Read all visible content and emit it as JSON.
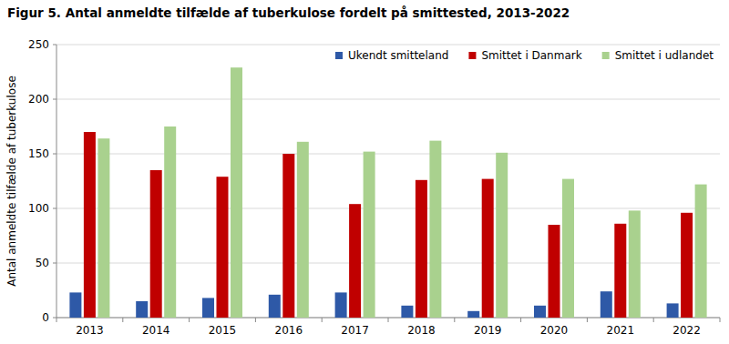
{
  "chart_data": {
    "type": "bar",
    "title": "Figur 5. Antal anmeldte tilfælde af tuberkulose fordelt på smittested,  2013-2022",
    "y_label": "Antal anmeldte tilfælde af tuberkulose",
    "categories": [
      "2013",
      "2014",
      "2015",
      "2016",
      "2017",
      "2018",
      "2019",
      "2020",
      "2021",
      "2022"
    ],
    "series": [
      {
        "name": "Ukendt smitteland",
        "color": "#2e59a7",
        "values": [
          23,
          15,
          18,
          21,
          23,
          11,
          6,
          11,
          24,
          13
        ]
      },
      {
        "name": "Smittet i Danmark",
        "color": "#c00000",
        "values": [
          170,
          135,
          129,
          150,
          104,
          126,
          127,
          85,
          86,
          96
        ]
      },
      {
        "name": "Smittet i udlandet",
        "color": "#a9d18e",
        "values": [
          164,
          175,
          229,
          161,
          152,
          162,
          151,
          127,
          98,
          122
        ]
      }
    ],
    "ylim": [
      0,
      250
    ],
    "yticks": [
      0,
      50,
      100,
      150,
      200,
      250
    ],
    "grid": true,
    "legend": "top-right"
  }
}
